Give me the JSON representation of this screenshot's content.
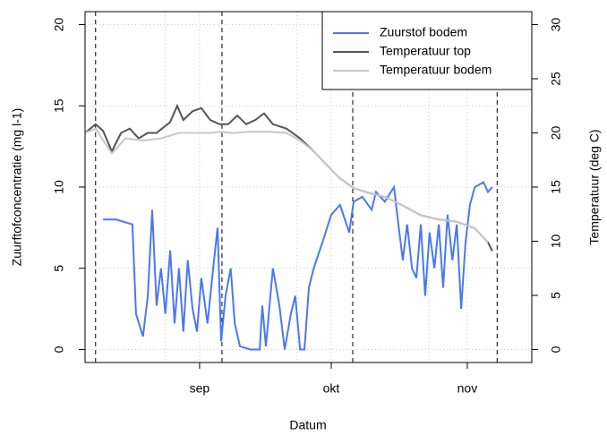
{
  "chart_data": {
    "type": "line",
    "xlabel": "Datum",
    "ylabel": "Zuurftofconcentratie (mg l-1)",
    "y2label": "Temperatuur (deg C)",
    "xlim": [
      -26.1,
      75.7
    ],
    "xticks": [
      {
        "value": 0,
        "label": "sep"
      },
      {
        "value": 30,
        "label": "okt"
      },
      {
        "value": 61,
        "label": "nov"
      }
    ],
    "xgrid": [
      -7.8,
      22.2,
      52.2
    ],
    "vlines": [
      -23.7,
      5.1,
      34.9,
      67.8
    ],
    "ylim": [
      -0.8,
      20.8
    ],
    "yticks": [
      0,
      5,
      10,
      15,
      20
    ],
    "y2lim": [
      -1.2,
      31.2
    ],
    "y2ticks": [
      0,
      5,
      10,
      15,
      20,
      25,
      30
    ],
    "grid": true,
    "legend": "top-right",
    "series": [
      {
        "name": "Zuurstof bodem",
        "color": "#4a78f0",
        "x": [
          -22.0,
          -19.0,
          -15.3,
          -14.5,
          -12.9,
          -11.8,
          -10.8,
          -9.8,
          -8.8,
          -7.8,
          -6.7,
          -5.7,
          -4.7,
          -3.7,
          -2.7,
          -1.6,
          -0.6,
          0.4,
          1.8,
          3.1,
          4.1,
          4.9,
          5.9,
          7.1,
          8.0,
          9.2,
          11.6,
          13.7,
          14.3,
          15.1,
          16.7,
          18.2,
          19.4,
          20.8,
          21.8,
          22.9,
          23.9,
          24.9,
          26.0,
          28.0,
          30.0,
          32.0,
          34.1,
          35.1,
          37.1,
          39.2,
          40.2,
          42.2,
          44.3,
          45.3,
          46.3,
          47.3,
          48.4,
          49.4,
          50.4,
          51.4,
          52.4,
          53.5,
          54.5,
          55.5,
          56.5,
          57.6,
          58.6,
          59.6,
          60.6,
          61.6,
          62.7,
          64.7,
          65.7,
          66.7
        ],
        "values": [
          8.0,
          8.0,
          7.7,
          2.2,
          0.8,
          3.3,
          8.6,
          2.7,
          5.0,
          2.2,
          6.1,
          1.6,
          5.0,
          1.1,
          5.5,
          2.5,
          1.1,
          4.4,
          1.6,
          5.0,
          7.5,
          0.5,
          3.3,
          5.0,
          1.6,
          0.2,
          0,
          0,
          2.7,
          0.2,
          5.0,
          2.7,
          0,
          2.2,
          3.3,
          0,
          0,
          3.8,
          5.0,
          6.6,
          8.3,
          8.9,
          7.2,
          9.1,
          9.4,
          8.6,
          9.7,
          9.1,
          10.0,
          7.7,
          5.5,
          7.7,
          5.0,
          4.4,
          7.7,
          3.3,
          7.2,
          5.0,
          7.7,
          3.8,
          8.3,
          5.5,
          7.7,
          2.5,
          6.6,
          8.9,
          10.0,
          10.3,
          9.7,
          10.0
        ]
      },
      {
        "name": "Temperatuur top",
        "color": "#555555",
        "axis": "y2",
        "x": [
          -26.1,
          -23.7,
          -22.0,
          -20.0,
          -17.9,
          -15.9,
          -13.9,
          -11.8,
          -9.8,
          -6.7,
          -5.1,
          -3.7,
          -1.6,
          0.4,
          2.4,
          4.5,
          6.5,
          8.6,
          10.6,
          12.7,
          14.7,
          16.7,
          19.8,
          22.9,
          26.0,
          30.0,
          32.0,
          35.1,
          38.2,
          42.2,
          46.3,
          50.4,
          54.5,
          58.6,
          62.7,
          65.7,
          66.7
        ],
        "values": [
          20.0,
          20.8,
          20.2,
          18.3,
          20.0,
          20.4,
          19.5,
          20,
          20,
          21,
          22.5,
          21.2,
          22,
          22.3,
          21.2,
          20.8,
          20.8,
          21.6,
          20.8,
          21.2,
          21.8,
          20.8,
          20.4,
          19.5,
          18.3,
          16.6,
          15.8,
          14.9,
          14.5,
          14.1,
          13.3,
          12.4,
          12.0,
          11.8,
          11.2,
          9.9,
          9.1
        ]
      },
      {
        "name": "Temperatuur bodem",
        "color": "#c8c8c8",
        "axis": "y2",
        "x": [
          -26.1,
          -23.7,
          -20.0,
          -16.9,
          -12.9,
          -8.8,
          -4.7,
          -0.6,
          2.4,
          4.5,
          7.6,
          11.6,
          15.7,
          19.8,
          22.9,
          26.0,
          30.0,
          32.0,
          35.1,
          38.2,
          42.2,
          46.3,
          50.4,
          54.5,
          58.6,
          62.7,
          65.7
        ],
        "values": [
          20.0,
          20.4,
          18.1,
          19.5,
          19.3,
          19.5,
          20.0,
          20.0,
          20.0,
          20.1,
          20.0,
          20.1,
          20.1,
          20.0,
          19.3,
          18.3,
          16.6,
          15.8,
          14.9,
          14.5,
          14.1,
          13.3,
          12.4,
          12.0,
          11.8,
          11.2,
          9.9
        ]
      }
    ]
  }
}
